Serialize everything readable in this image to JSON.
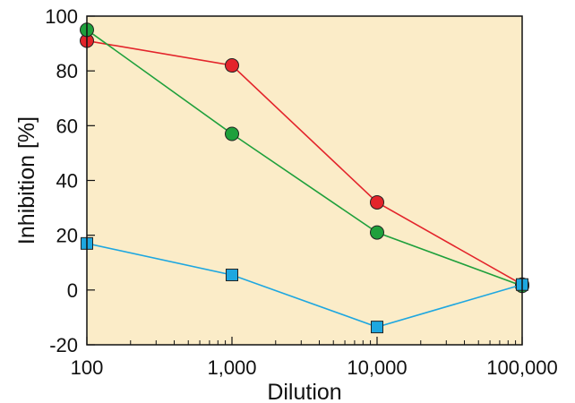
{
  "chart_data": {
    "type": "line",
    "xlabel": "Dilution",
    "ylabel": "Inhibition [%]",
    "xscale": "log",
    "xlim": [
      100,
      100000
    ],
    "ylim": [
      -20,
      100
    ],
    "x": [
      100,
      1000,
      10000,
      100000
    ],
    "x_tick_labels": [
      "100",
      "1,000",
      "10,000",
      "100,000"
    ],
    "y_ticks": [
      -20,
      0,
      20,
      40,
      60,
      80,
      100
    ],
    "y_tick_labels": [
      "-20",
      "0",
      "20",
      "40",
      "60",
      "80",
      "100"
    ],
    "grid": false,
    "background_color": "#fbecc8",
    "series": [
      {
        "color": "#e3242b",
        "marker": "circle",
        "values": [
          91,
          82,
          32,
          2
        ]
      },
      {
        "color": "#1fa03c",
        "marker": "circle",
        "values": [
          95,
          57,
          21,
          1.5
        ]
      },
      {
        "color": "#1ea7e0",
        "marker": "square",
        "values": [
          17,
          5.5,
          -13.5,
          2
        ]
      }
    ]
  }
}
